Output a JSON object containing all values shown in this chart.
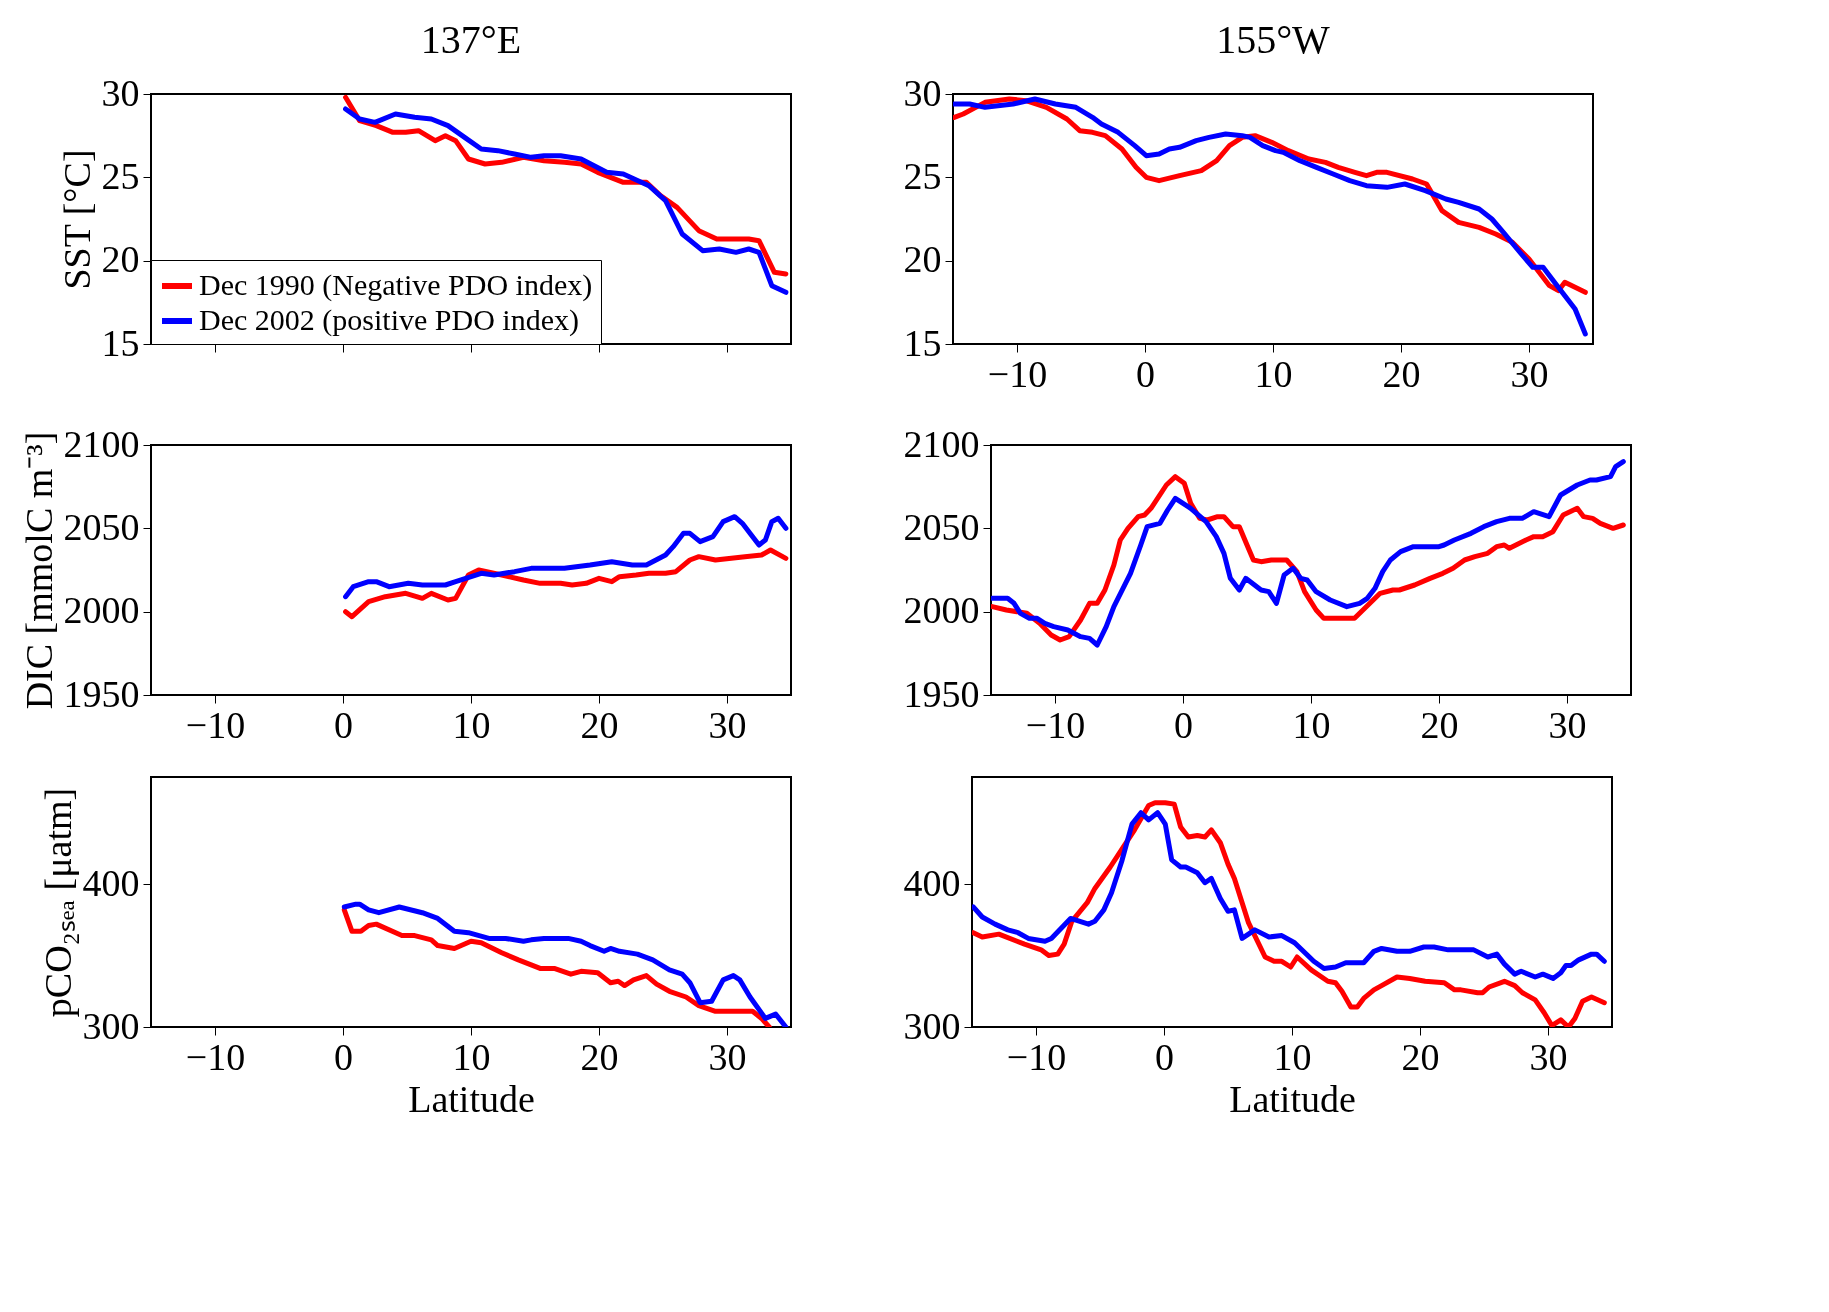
{
  "chart_data": [
    {
      "type": "line",
      "title": "137°E",
      "ylabel": "SST [°C]",
      "xlim": [
        -15,
        35
      ],
      "ylim": [
        15,
        30
      ],
      "xticks": [
        -10,
        0,
        10,
        20,
        30
      ],
      "yticks": [
        15,
        20,
        25,
        30
      ],
      "tick_labels": "y",
      "legend": "bottom left",
      "series": [
        {
          "name": "Dec 1990 (Negative PDO index)",
          "color": "#ff0000",
          "x": [
            0.2,
            1.3,
            2.6,
            3.9,
            4.9,
            5.9,
            7.2,
            8.0,
            8.8,
            9.8,
            11.1,
            12.4,
            14.1,
            15.7,
            17.3,
            18.6,
            19.9,
            21.9,
            23.7,
            24.8,
            26.1,
            27.8,
            29.2,
            31.7,
            32.5,
            33.7,
            34.6
          ],
          "values": [
            29.8,
            28.4,
            28.1,
            27.7,
            27.7,
            27.8,
            27.2,
            27.5,
            27.2,
            26.1,
            25.8,
            25.9,
            26.2,
            26.0,
            25.9,
            25.8,
            25.3,
            24.7,
            24.7,
            23.9,
            23.2,
            21.8,
            21.3,
            21.3,
            21.2,
            19.3,
            19.2
          ]
        },
        {
          "name": "Dec 2002 (positive PDO index)",
          "color": "#0000ff",
          "x": [
            0.2,
            1.3,
            2.5,
            4.1,
            5.6,
            6.9,
            8.2,
            9.5,
            10.8,
            12.1,
            13.4,
            14.7,
            15.7,
            17.0,
            18.6,
            20.6,
            21.9,
            23.9,
            25.2,
            26.5,
            28.1,
            29.4,
            30.7,
            31.7,
            32.5,
            33.5,
            34.6
          ],
          "values": [
            29.1,
            28.5,
            28.3,
            28.8,
            28.6,
            28.5,
            28.1,
            27.4,
            26.7,
            26.6,
            26.4,
            26.2,
            26.3,
            26.3,
            26.1,
            25.3,
            25.2,
            24.5,
            23.6,
            21.6,
            20.6,
            20.7,
            20.5,
            20.7,
            20.5,
            18.5,
            18.1
          ]
        }
      ]
    },
    {
      "type": "line",
      "title": "155°W",
      "xlim": [
        -15,
        35
      ],
      "ylim": [
        15,
        30
      ],
      "xticks": [
        -10,
        0,
        10,
        20,
        30
      ],
      "yticks": [
        15,
        20,
        25,
        30
      ],
      "series": [
        {
          "color": "#ff0000",
          "x": [
            -14.9,
            -14.2,
            -12.5,
            -10.6,
            -9.3,
            -7.7,
            -6.1,
            -5.1,
            -4.1,
            -3.1,
            -1.8,
            -0.7,
            0.1,
            1.1,
            2.7,
            4.4,
            5.6,
            6.6,
            7.6,
            8.6,
            9.9,
            11.2,
            12.8,
            14.1,
            15.1,
            16.4,
            17.3,
            18.1,
            18.9,
            20.9,
            22.0,
            23.2,
            24.5,
            26.1,
            27.4,
            28.7,
            30.0,
            31.6,
            32.3,
            32.8,
            33.6,
            34.4
          ],
          "values": [
            28.6,
            28.8,
            29.5,
            29.7,
            29.6,
            29.2,
            28.5,
            27.8,
            27.7,
            27.5,
            26.7,
            25.6,
            25.0,
            24.8,
            25.1,
            25.4,
            26.0,
            26.9,
            27.4,
            27.5,
            27.1,
            26.6,
            26.1,
            25.9,
            25.6,
            25.3,
            25.1,
            25.3,
            25.3,
            24.9,
            24.6,
            23.0,
            22.3,
            22.0,
            21.6,
            21.1,
            20.1,
            18.5,
            18.2,
            18.7,
            18.4,
            18.1
          ]
        },
        {
          "color": "#0000ff",
          "x": [
            -14.9,
            -13.7,
            -12.5,
            -10.3,
            -8.6,
            -7.0,
            -5.4,
            -4.1,
            -3.4,
            -2.1,
            -0.8,
            0.1,
            1.1,
            1.9,
            2.7,
            4.0,
            5.0,
            6.3,
            7.6,
            8.2,
            9.2,
            10.2,
            10.8,
            12.1,
            13.4,
            14.7,
            16.0,
            17.3,
            18.9,
            20.3,
            21.9,
            23.5,
            24.5,
            26.1,
            27.1,
            28.0,
            29.4,
            30.3,
            31.1,
            32.2,
            33.6,
            34.4
          ],
          "values": [
            29.4,
            29.4,
            29.2,
            29.4,
            29.7,
            29.4,
            29.2,
            28.6,
            28.2,
            27.7,
            26.9,
            26.3,
            26.4,
            26.7,
            26.8,
            27.2,
            27.4,
            27.6,
            27.5,
            27.4,
            26.9,
            26.6,
            26.5,
            26.0,
            25.6,
            25.2,
            24.8,
            24.5,
            24.4,
            24.6,
            24.2,
            23.7,
            23.5,
            23.1,
            22.5,
            21.7,
            20.4,
            19.6,
            19.6,
            18.5,
            17.1,
            15.6
          ]
        }
      ]
    },
    {
      "type": "line",
      "ylabel": "DIC [mmolC m⁻³]",
      "xlim": [
        -15,
        35
      ],
      "ylim": [
        1950,
        2100
      ],
      "xticks": [
        -10,
        0,
        10,
        20,
        30
      ],
      "yticks": [
        1950,
        2000,
        2050,
        2100
      ],
      "series": [
        {
          "color": "#ff0000",
          "x": [
            0.2,
            0.7,
            2.0,
            3.3,
            4.9,
            6.2,
            6.9,
            8.2,
            8.8,
            9.8,
            10.6,
            12.4,
            14.1,
            15.4,
            17.0,
            17.9,
            19.0,
            20.0,
            21.0,
            21.6,
            22.9,
            23.9,
            25.2,
            26.0,
            27.1,
            27.8,
            29.1,
            31.4,
            32.7,
            33.4,
            34.6
          ],
          "values": [
            2000,
            1997,
            2006,
            2009,
            2011,
            2008,
            2011,
            2007,
            2008,
            2022,
            2025,
            2022,
            2019,
            2017,
            2017,
            2016,
            2017,
            2020,
            2018,
            2021,
            2022,
            2023,
            2023,
            2024,
            2031,
            2033,
            2031,
            2033,
            2034,
            2037,
            2032
          ]
        },
        {
          "color": "#0000ff",
          "x": [
            0.2,
            0.8,
            2.0,
            2.6,
            3.6,
            5.1,
            6.2,
            8.0,
            8.8,
            10.8,
            11.8,
            13.4,
            14.7,
            16.3,
            17.3,
            19.3,
            21.0,
            22.6,
            23.7,
            25.2,
            25.8,
            26.6,
            27.1,
            27.9,
            28.9,
            29.7,
            30.6,
            31.2,
            31.9,
            32.5,
            33.0,
            33.5,
            34.0,
            34.6
          ],
          "values": [
            2009,
            2015,
            2018,
            2018,
            2015,
            2017,
            2016,
            2016,
            2018,
            2023,
            2022,
            2024,
            2026,
            2026,
            2026,
            2028,
            2030,
            2028,
            2028,
            2034,
            2039,
            2047,
            2047,
            2042,
            2045,
            2054,
            2057,
            2053,
            2046,
            2040,
            2043,
            2054,
            2056,
            2050
          ]
        }
      ]
    },
    {
      "type": "line",
      "xlim": [
        -15,
        35
      ],
      "ylim": [
        1950,
        2100
      ],
      "xticks": [
        -10,
        0,
        10,
        20,
        30
      ],
      "yticks": [
        1950,
        2000,
        2050,
        2100
      ],
      "series": [
        {
          "color": "#ff0000",
          "x": [
            -14.9,
            -13.8,
            -12.2,
            -11.2,
            -10.3,
            -9.6,
            -8.9,
            -8.0,
            -7.3,
            -6.7,
            -6.1,
            -5.4,
            -4.9,
            -4.3,
            -3.5,
            -3.0,
            -2.5,
            -1.3,
            -0.6,
            0.1,
            0.6,
            1.3,
            1.9,
            2.7,
            3.2,
            3.9,
            4.4,
            5.0,
            5.5,
            6.1,
            6.9,
            8.1,
            8.9,
            9.5,
            10.4,
            11.0,
            13.4,
            14.6,
            15.4,
            16.4,
            16.9,
            18.1,
            19.3,
            20.3,
            21.1,
            22.0,
            22.8,
            23.8,
            24.5,
            25.1,
            25.5,
            26.8,
            27.4,
            28.1,
            28.9,
            29.7,
            30.8,
            31.3,
            32.0,
            32.6,
            33.6,
            34.4
          ],
          "values": [
            2003,
            2001,
            1999,
            1993,
            1986,
            1983,
            1985,
            1995,
            2005,
            2005,
            2013,
            2028,
            2043,
            2050,
            2057,
            2058,
            2062,
            2076,
            2081,
            2077,
            2065,
            2056,
            2055,
            2057,
            2057,
            2051,
            2051,
            2040,
            2031,
            2030,
            2031,
            2031,
            2024,
            2012,
            2001,
            1996,
            1996,
            2005,
            2011,
            2013,
            2013,
            2016,
            2020,
            2023,
            2026,
            2031,
            2033,
            2035,
            2039,
            2040,
            2038,
            2043,
            2045,
            2045,
            2048,
            2058,
            2062,
            2057,
            2056,
            2053,
            2050,
            2052
          ]
        },
        {
          "color": "#0000ff",
          "x": [
            -14.9,
            -13.7,
            -13.2,
            -12.7,
            -12.0,
            -11.4,
            -10.8,
            -10.1,
            -9.0,
            -8.0,
            -7.3,
            -6.7,
            -6.0,
            -5.4,
            -4.1,
            -3.3,
            -2.8,
            -1.8,
            -1.2,
            -0.6,
            0.6,
            1.8,
            2.6,
            3.2,
            3.7,
            4.4,
            4.9,
            6.1,
            6.7,
            7.3,
            7.9,
            8.6,
            9.2,
            9.7,
            10.4,
            11.5,
            12.8,
            13.8,
            14.4,
            15.0,
            15.6,
            16.2,
            17.0,
            18.0,
            20.0,
            20.4,
            21.2,
            22.5,
            23.5,
            24.5,
            25.5,
            26.5,
            27.4,
            28.6,
            29.5,
            30.8,
            31.8,
            32.3,
            33.4,
            33.8,
            34.4
          ],
          "values": [
            2008,
            2008,
            2005,
            1999,
            1996,
            1996,
            1993,
            1991,
            1989,
            1985,
            1984,
            1980,
            1991,
            2003,
            2023,
            2040,
            2051,
            2053,
            2061,
            2068,
            2062,
            2054,
            2045,
            2035,
            2020,
            2013,
            2020,
            2013,
            2012,
            2005,
            2022,
            2026,
            2020,
            2019,
            2012,
            2007,
            2003,
            2005,
            2008,
            2014,
            2024,
            2031,
            2036,
            2039,
            2039,
            2040,
            2043,
            2047,
            2051,
            2054,
            2056,
            2056,
            2060,
            2057,
            2070,
            2076,
            2079,
            2079,
            2081,
            2087,
            2090
          ]
        }
      ]
    },
    {
      "type": "line",
      "ylabel": "pCO₂ₛₑₐ [μatm]",
      "xlabel": "Latitude",
      "xlim": [
        -15,
        35
      ],
      "ylim": [
        300,
        475
      ],
      "xticks": [
        -10,
        0,
        10,
        20,
        30
      ],
      "yticks": [
        300,
        400
      ],
      "series": [
        {
          "color": "#ff0000",
          "x": [
            0.1,
            0.7,
            1.4,
            2.0,
            2.6,
            4.6,
            5.6,
            6.9,
            7.4,
            8.7,
            10.0,
            10.8,
            12.4,
            13.7,
            15.4,
            16.5,
            17.8,
            18.6,
            19.9,
            20.9,
            21.5,
            22.0,
            22.7,
            23.7,
            24.5,
            25.5,
            26.8,
            27.8,
            29.1,
            32.0,
            32.7,
            33.3
          ],
          "values": [
            382,
            367,
            367,
            371,
            372,
            364,
            364,
            361,
            357,
            355,
            360,
            359,
            352,
            347,
            341,
            341,
            337,
            339,
            338,
            331,
            332,
            329,
            333,
            336,
            330,
            325,
            321,
            315,
            311,
            311,
            306,
            300
          ]
        },
        {
          "color": "#0000ff",
          "x": [
            0.1,
            1.0,
            1.3,
            2.0,
            2.8,
            4.4,
            6.2,
            7.4,
            8.7,
            9.8,
            11.4,
            12.7,
            14.1,
            14.7,
            15.7,
            17.6,
            18.6,
            19.3,
            20.4,
            20.9,
            21.6,
            23.0,
            24.2,
            25.5,
            26.5,
            27.1,
            27.9,
            28.8,
            29.7,
            30.5,
            31.0,
            31.8,
            33.0,
            33.8,
            34.6
          ],
          "values": [
            384,
            386,
            386,
            382,
            380,
            384,
            380,
            376,
            367,
            366,
            362,
            362,
            360,
            361,
            362,
            362,
            360,
            357,
            353,
            355,
            353,
            351,
            347,
            340,
            337,
            331,
            317,
            318,
            333,
            336,
            333,
            321,
            306,
            309,
            300
          ]
        }
      ]
    },
    {
      "type": "line",
      "xlabel": "Latitude",
      "xlim": [
        -15,
        35
      ],
      "ylim": [
        300,
        475
      ],
      "xticks": [
        -10,
        0,
        10,
        20,
        30
      ],
      "yticks": [
        300,
        400
      ],
      "series": [
        {
          "color": "#ff0000",
          "x": [
            -14.9,
            -14.2,
            -12.9,
            -10.9,
            -9.6,
            -9.0,
            -8.3,
            -7.8,
            -7.2,
            -6.0,
            -5.4,
            -4.2,
            -3.4,
            -2.3,
            -1.2,
            -0.7,
            0.1,
            0.8,
            1.3,
            1.9,
            2.6,
            3.2,
            3.7,
            4.4,
            5.0,
            5.5,
            6.6,
            7.9,
            8.6,
            9.2,
            9.9,
            10.4,
            11.5,
            12.8,
            13.4,
            13.9,
            14.6,
            15.1,
            15.6,
            16.4,
            17.0,
            18.2,
            19.2,
            20.4,
            21.9,
            22.7,
            23.2,
            24.5,
            24.9,
            25.4,
            26.6,
            27.4,
            28.0,
            29.0,
            29.7,
            30.3,
            31.0,
            31.6,
            32.1,
            32.7,
            33.4,
            34.4
          ],
          "values": [
            366,
            363,
            365,
            358,
            354,
            350,
            351,
            358,
            374,
            387,
            397,
            412,
            423,
            438,
            455,
            457,
            457,
            456,
            440,
            433,
            434,
            433,
            438,
            429,
            414,
            404,
            373,
            349,
            346,
            346,
            342,
            349,
            340,
            332,
            331,
            325,
            314,
            314,
            320,
            326,
            329,
            335,
            334,
            332,
            331,
            326,
            326,
            324,
            324,
            328,
            332,
            329,
            324,
            319,
            310,
            301,
            305,
            300,
            306,
            318,
            321,
            317
          ]
        },
        {
          "color": "#0000ff",
          "x": [
            -14.9,
            -14.2,
            -13.2,
            -12.2,
            -11.4,
            -10.6,
            -9.3,
            -8.8,
            -7.3,
            -5.9,
            -5.4,
            -4.7,
            -4.1,
            -3.3,
            -2.5,
            -1.8,
            -1.2,
            -0.5,
            0.1,
            0.6,
            1.3,
            1.7,
            2.6,
            3.2,
            3.7,
            4.4,
            5.0,
            5.5,
            6.1,
            7.1,
            8.2,
            9.2,
            10.2,
            11.7,
            12.5,
            13.4,
            14.2,
            15.6,
            16.4,
            17.0,
            18.2,
            19.2,
            20.3,
            21.1,
            22.2,
            23.2,
            24.2,
            25.3,
            26.0,
            26.6,
            27.4,
            27.9,
            29.0,
            29.6,
            30.4,
            31.0,
            31.4,
            31.8,
            32.4,
            33.4,
            33.8,
            34.4
          ],
          "values": [
            384,
            377,
            372,
            368,
            366,
            362,
            360,
            362,
            376,
            372,
            374,
            382,
            394,
            416,
            442,
            450,
            445,
            450,
            442,
            417,
            412,
            412,
            408,
            401,
            404,
            390,
            381,
            382,
            362,
            368,
            363,
            364,
            359,
            346,
            341,
            342,
            345,
            345,
            353,
            355,
            353,
            353,
            356,
            356,
            354,
            354,
            354,
            349,
            351,
            344,
            337,
            339,
            335,
            337,
            334,
            338,
            343,
            343,
            347,
            351,
            351,
            346
          ]
        }
      ]
    }
  ]
}
